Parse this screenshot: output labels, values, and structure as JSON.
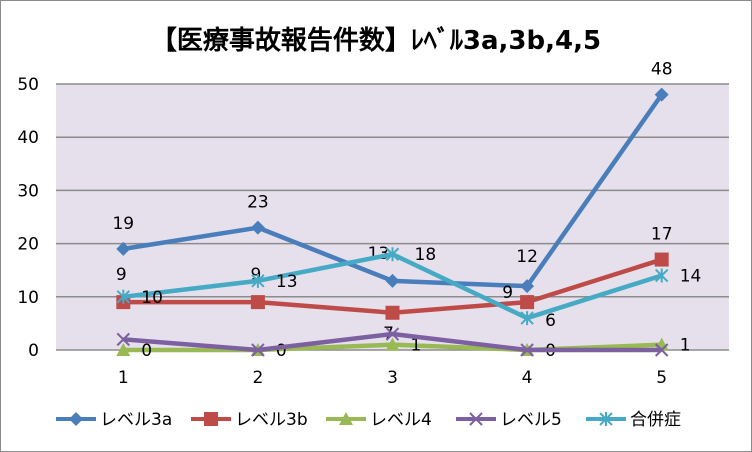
{
  "chart_data": {
    "type": "line",
    "title": "【医療事故報告件数】ﾚﾍﾞﾙ3a,3b,4,5",
    "categories": [
      "1",
      "2",
      "3",
      "4",
      "5"
    ],
    "ylim": [
      0,
      50
    ],
    "yticks": [
      "0",
      "10",
      "20",
      "30",
      "40",
      "50"
    ],
    "grid": true,
    "legend_position": "bottom",
    "series": [
      {
        "name": "レベル3a",
        "color": "#4a7ebb",
        "marker": "diamond",
        "values": [
          19,
          23,
          13,
          12,
          48
        ],
        "labels": true
      },
      {
        "name": "レベル3b",
        "color": "#be4b48",
        "marker": "square",
        "values": [
          9,
          9,
          7,
          9,
          17
        ],
        "labels": true
      },
      {
        "name": "レベル4",
        "color": "#98b954",
        "marker": "triangle",
        "values": [
          0,
          0,
          1,
          0,
          1
        ],
        "labels": true
      },
      {
        "name": "レベル5",
        "color": "#7d60a0",
        "marker": "x",
        "values": [
          2,
          0,
          3,
          0,
          0
        ],
        "labels": false
      },
      {
        "name": "合併症",
        "color": "#46aac5",
        "marker": "asterisk",
        "values": [
          10,
          13,
          18,
          6,
          14
        ],
        "labels": true
      }
    ]
  }
}
